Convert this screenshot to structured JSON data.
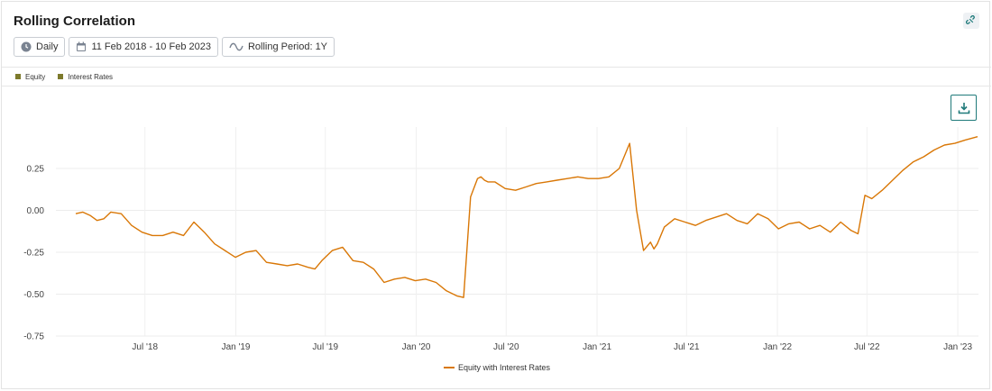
{
  "header": {
    "title": "Rolling Correlation",
    "controls": {
      "frequency": "Daily",
      "date_range": "11 Feb 2018 - 10 Feb 2023",
      "rolling_period": "Rolling Period: 1Y"
    }
  },
  "legend_top": [
    "Equity",
    "Interest Rates"
  ],
  "colors": {
    "line": "#d97706",
    "swatch": "#7d7a2c",
    "accent": "#1f7a7a"
  },
  "chart_data": {
    "type": "line",
    "title": "",
    "xlabel": "",
    "ylabel": "",
    "ylim": [
      -0.75,
      0.5
    ],
    "yticks": [
      0.25,
      0.0,
      -0.25,
      -0.5,
      -0.75
    ],
    "ytick_labels": [
      "0.25",
      "0.00",
      "-0.25",
      "-0.50",
      "-0.75"
    ],
    "xlim": [
      "2018-02-11",
      "2023-02-10"
    ],
    "xticks": [
      "2018-07-01",
      "2019-01-01",
      "2019-07-01",
      "2020-01-01",
      "2020-07-01",
      "2021-01-01",
      "2021-07-01",
      "2022-01-01",
      "2022-07-01",
      "2023-01-01"
    ],
    "xtick_labels": [
      "Jul '18",
      "Jan '19",
      "Jul '19",
      "Jan '20",
      "Jul '20",
      "Jan '21",
      "Jul '21",
      "Jan '22",
      "Jul '22",
      "Jan '23"
    ],
    "grid": true,
    "legend": "bottom-center",
    "series": [
      {
        "name": "Equity with Interest Rates",
        "x": [
          "2018-02-11",
          "2018-02-25",
          "2018-03-12",
          "2018-03-26",
          "2018-04-09",
          "2018-04-23",
          "2018-05-14",
          "2018-06-04",
          "2018-06-25",
          "2018-07-16",
          "2018-08-06",
          "2018-08-27",
          "2018-09-17",
          "2018-10-08",
          "2018-10-29",
          "2018-11-19",
          "2018-12-10",
          "2018-12-31",
          "2019-01-21",
          "2019-02-11",
          "2019-03-04",
          "2019-03-25",
          "2019-04-15",
          "2019-05-06",
          "2019-05-27",
          "2019-06-10",
          "2019-06-24",
          "2019-07-15",
          "2019-08-05",
          "2019-08-26",
          "2019-09-16",
          "2019-10-07",
          "2019-10-28",
          "2019-11-18",
          "2019-12-09",
          "2019-12-30",
          "2020-01-20",
          "2020-02-10",
          "2020-03-02",
          "2020-03-23",
          "2020-04-06",
          "2020-04-20",
          "2020-05-04",
          "2020-05-11",
          "2020-05-18",
          "2020-05-25",
          "2020-06-08",
          "2020-06-29",
          "2020-07-20",
          "2020-08-10",
          "2020-08-31",
          "2020-09-21",
          "2020-10-12",
          "2020-11-02",
          "2020-11-23",
          "2020-12-14",
          "2021-01-04",
          "2021-01-25",
          "2021-02-15",
          "2021-03-08",
          "2021-03-22",
          "2021-04-05",
          "2021-04-19",
          "2021-04-26",
          "2021-05-03",
          "2021-05-17",
          "2021-06-07",
          "2021-06-28",
          "2021-07-19",
          "2021-08-09",
          "2021-08-30",
          "2021-09-20",
          "2021-10-11",
          "2021-11-01",
          "2021-11-22",
          "2021-12-13",
          "2022-01-03",
          "2022-01-24",
          "2022-02-14",
          "2022-03-07",
          "2022-03-28",
          "2022-04-18",
          "2022-05-09",
          "2022-05-30",
          "2022-06-13",
          "2022-06-27",
          "2022-07-11",
          "2022-08-01",
          "2022-08-22",
          "2022-09-12",
          "2022-10-03",
          "2022-10-24",
          "2022-11-14",
          "2022-12-05",
          "2022-12-26",
          "2023-01-16",
          "2023-02-10"
        ],
        "y": [
          -0.02,
          -0.01,
          -0.03,
          -0.06,
          -0.05,
          -0.01,
          -0.02,
          -0.09,
          -0.13,
          -0.15,
          -0.15,
          -0.13,
          -0.15,
          -0.07,
          -0.13,
          -0.2,
          -0.24,
          -0.28,
          -0.25,
          -0.24,
          -0.31,
          -0.32,
          -0.33,
          -0.32,
          -0.34,
          -0.35,
          -0.3,
          -0.24,
          -0.22,
          -0.3,
          -0.31,
          -0.35,
          -0.43,
          -0.41,
          -0.4,
          -0.42,
          -0.41,
          -0.43,
          -0.48,
          -0.51,
          -0.52,
          0.08,
          0.19,
          0.2,
          0.18,
          0.17,
          0.17,
          0.13,
          0.12,
          0.14,
          0.16,
          0.17,
          0.18,
          0.19,
          0.2,
          0.19,
          0.19,
          0.2,
          0.25,
          0.4,
          0.0,
          -0.24,
          -0.19,
          -0.23,
          -0.2,
          -0.1,
          -0.05,
          -0.07,
          -0.09,
          -0.06,
          -0.04,
          -0.02,
          -0.06,
          -0.08,
          -0.02,
          -0.05,
          -0.11,
          -0.08,
          -0.07,
          -0.11,
          -0.09,
          -0.13,
          -0.07,
          -0.12,
          -0.14,
          0.09,
          0.07,
          0.12,
          0.18,
          0.24,
          0.29,
          0.32,
          0.36,
          0.39,
          0.4,
          0.42,
          0.44
        ]
      }
    ]
  },
  "bottom_legend": {
    "label": "Equity with Interest Rates"
  }
}
